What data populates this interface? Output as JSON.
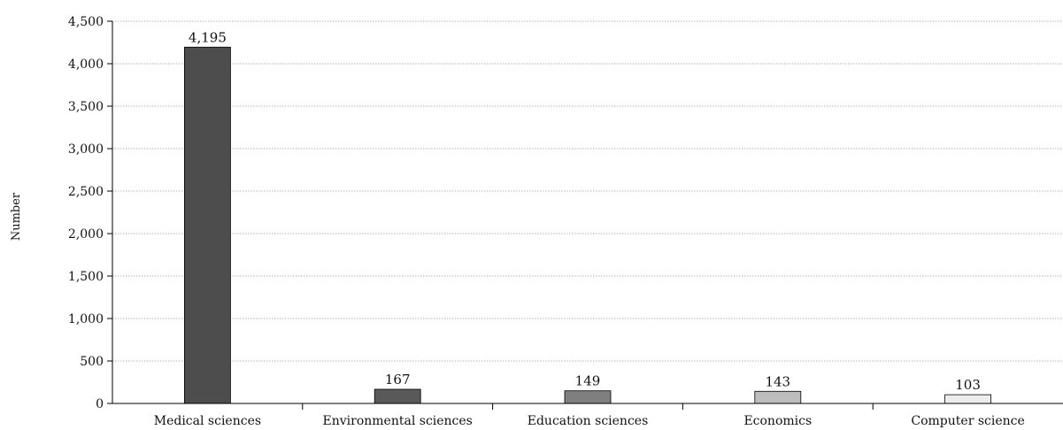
{
  "chart_data": {
    "type": "bar",
    "ylabel": "Number",
    "ylim": [
      0,
      4500
    ],
    "yticks": [
      0,
      500,
      1000,
      1500,
      2000,
      2500,
      3000,
      3500,
      4000,
      4500
    ],
    "ytick_labels": [
      "0",
      "500",
      "1,000",
      "1,500",
      "2,000",
      "2,500",
      "3,000",
      "3,500",
      "4,000",
      "4,500"
    ],
    "grid": true,
    "categories": [
      "Medical sciences",
      "Environmental sciences",
      "Education sciences",
      "Economics",
      "Computer science"
    ],
    "values": [
      4195,
      167,
      149,
      143,
      103
    ],
    "value_labels": [
      "4,195",
      "167",
      "149",
      "143",
      "103"
    ],
    "colors": [
      "#4d4d4d",
      "#595959",
      "#7f7f7f",
      "#bdbdbd",
      "#ececec"
    ]
  }
}
